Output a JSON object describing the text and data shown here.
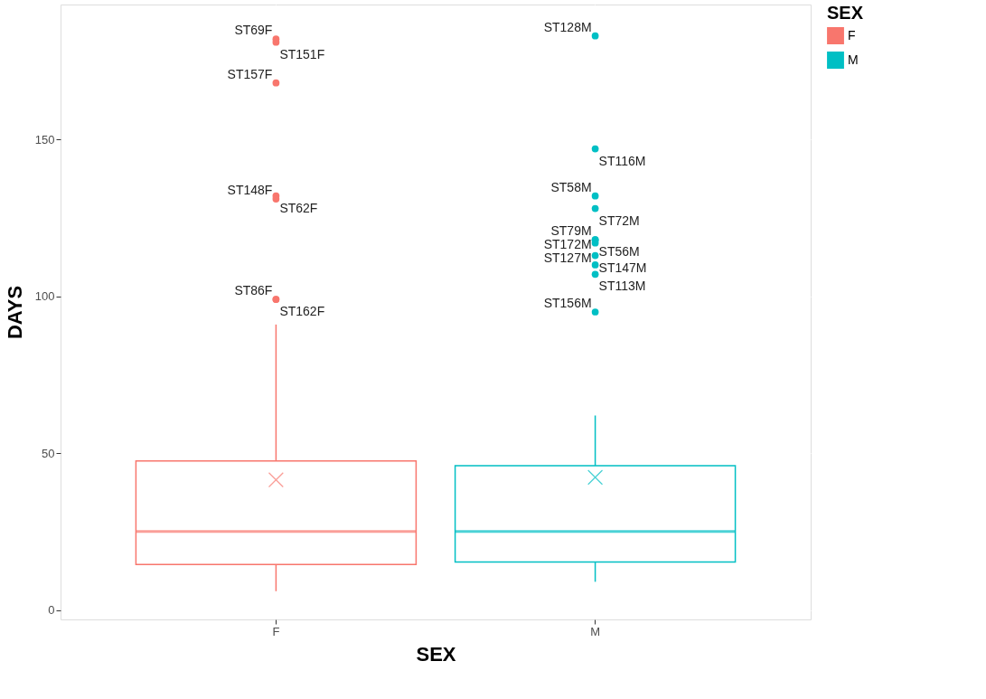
{
  "chart_data": {
    "type": "box",
    "xlabel": "SEX",
    "ylabel": "DAYS",
    "legend_title": "SEX",
    "legend": "right",
    "categories": [
      "F",
      "M"
    ],
    "series": [
      {
        "name": "F",
        "color": "#f8766d",
        "boxes": [
          {
            "low": 6,
            "q1": 14.5,
            "median": 25,
            "q3": 47.5,
            "high": 91,
            "mean": 41.5,
            "outliers": [
              182,
              181,
              168,
              132,
              131,
              99,
              99
            ]
          },
          null
        ]
      },
      {
        "name": "M",
        "color": "#00bfc4",
        "boxes": [
          null,
          {
            "low": 9,
            "q1": 15.3,
            "median": 25,
            "q3": 46,
            "high": 62,
            "mean": 42.3,
            "outliers": [
              183,
              147,
              132,
              128,
              118,
              118,
              117,
              113,
              110,
              107,
              95
            ]
          }
        ]
      }
    ],
    "ylim": [
      -3,
      193
    ],
    "yticks": [
      0,
      50,
      100,
      150
    ],
    "grid": true,
    "annotations": [
      "ST69F",
      "ST151F",
      "ST157F",
      "ST62F",
      "ST148F",
      "ST162F",
      "ST86F",
      "ST128M",
      "ST116M",
      "ST58M",
      "ST72M",
      "ST79M",
      "ST56M",
      "ST172M",
      "ST147M",
      "ST127M",
      "ST113M",
      "ST156M"
    ]
  }
}
